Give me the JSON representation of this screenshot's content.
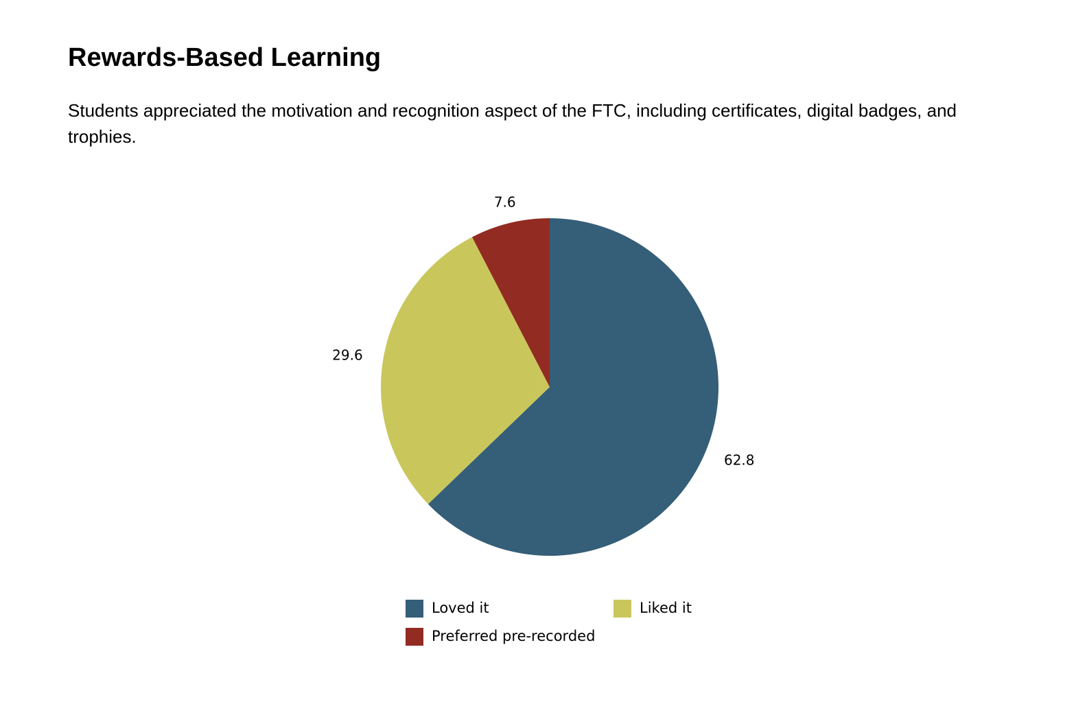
{
  "page": {
    "title": "Rewards-Based Learning",
    "description": "Students appreciated the motivation and recognition aspect of the FTC, including certificates, digital badges, and trophies."
  },
  "chart_data": {
    "type": "pie",
    "title": "",
    "start_angle": "12 o'clock",
    "direction": "clockwise",
    "legend_position": "bottom",
    "slices": [
      {
        "label": "Loved it",
        "value": 62.8,
        "display": "62.8",
        "color": "#355E78"
      },
      {
        "label": "Liked it",
        "value": 29.6,
        "display": "29.6",
        "color": "#C9C75C"
      },
      {
        "label": "Preferred pre-recorded",
        "value": 7.6,
        "display": "7.6",
        "color": "#922B21"
      }
    ]
  }
}
